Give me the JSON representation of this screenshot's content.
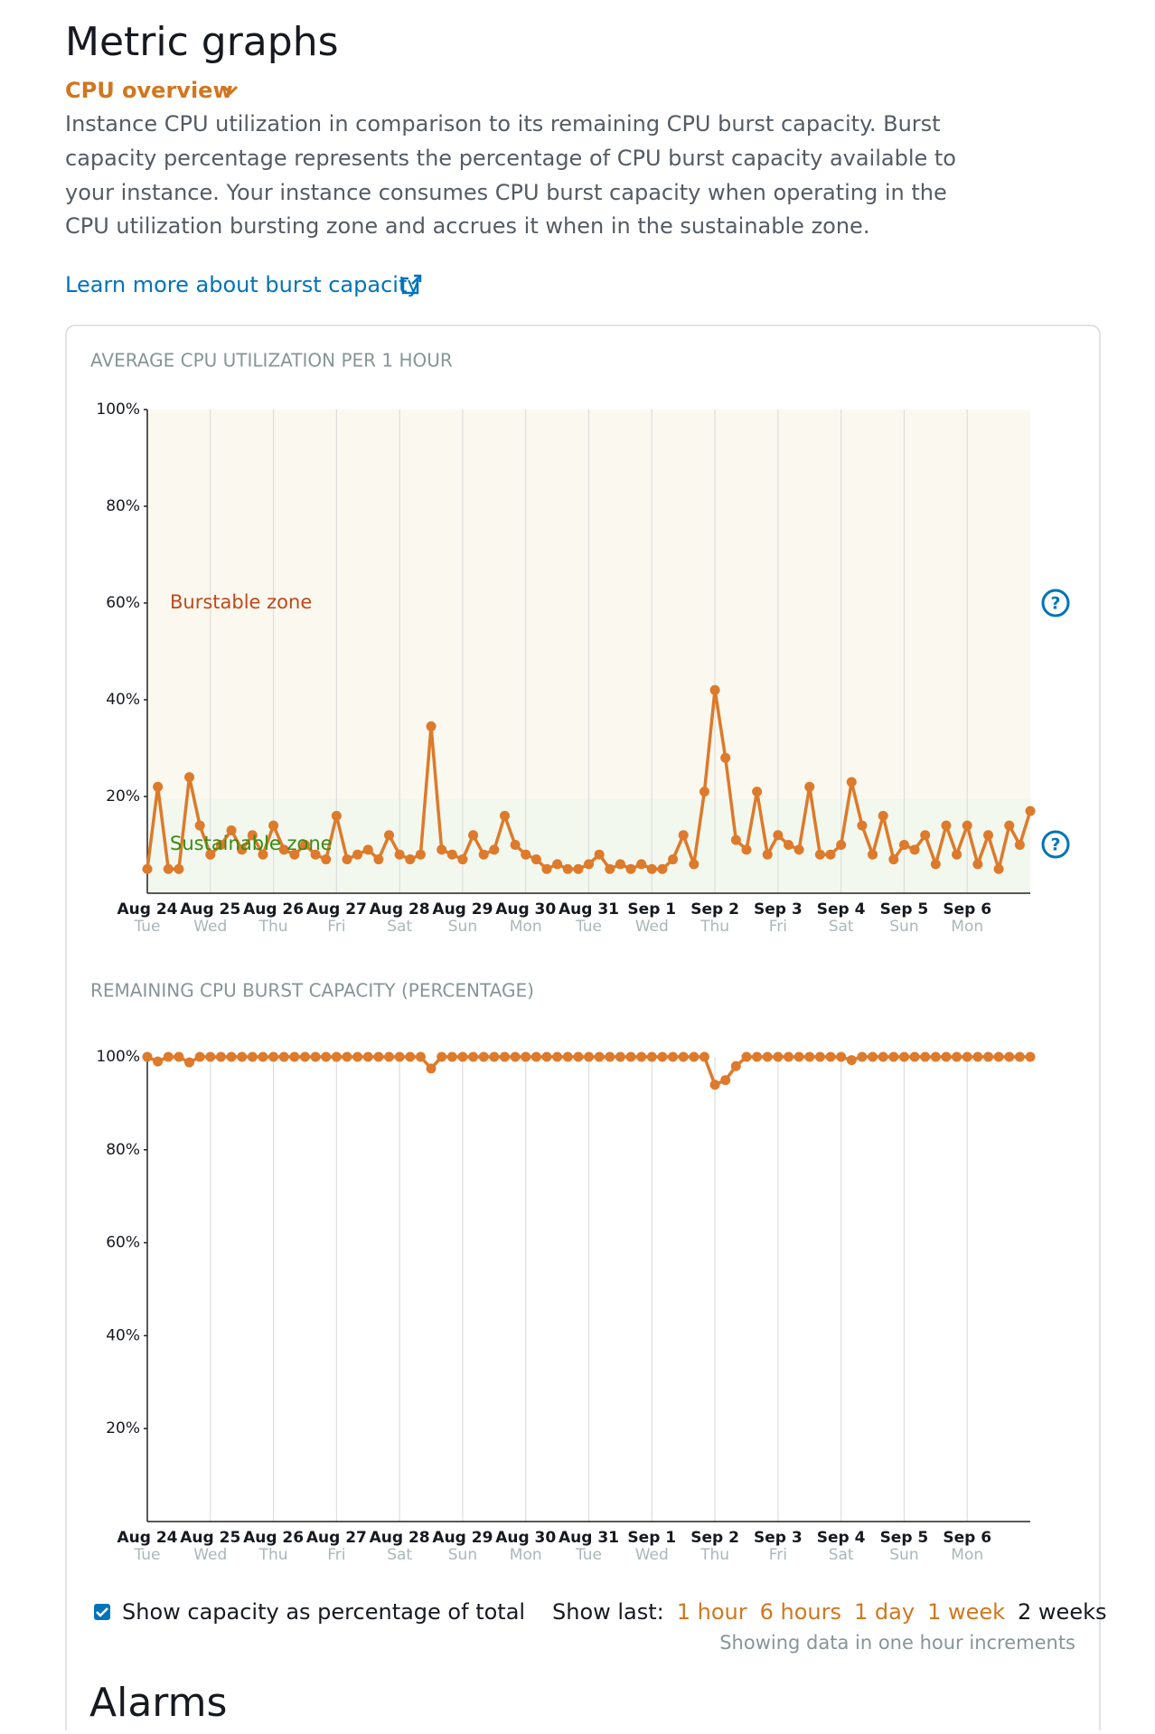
{
  "header": {
    "title": "Metric graphs",
    "section": "CPU overview"
  },
  "description": [
    "Instance CPU utilization in comparison to its remaining CPU burst capacity. Burst",
    "capacity percentage represents the percentage of CPU burst capacity available to",
    "your instance. Your instance consumes CPU burst capacity when operating in the",
    "CPU utilization bursting zone and accrues it when in the sustainable zone."
  ],
  "link": "Learn more about burst capacity",
  "charts": [
    {
      "type": "line",
      "title": "AVERAGE CPU UTILIZATION PER 1 HOUR",
      "color": "#dd7a2b",
      "zones": [
        "Burstable zone",
        "Sustainable zone"
      ],
      "xlim": [
        0,
        336
      ],
      "ylim": [
        0,
        100
      ],
      "yticks": [
        {
          "value": 20,
          "label": "20%"
        },
        {
          "value": 40,
          "label": "40%"
        },
        {
          "value": 60,
          "label": "60%"
        },
        {
          "value": 80,
          "label": "80%"
        },
        {
          "value": 100,
          "label": "100%"
        }
      ],
      "xticks": [
        {
          "value": 0,
          "label": "Aug 24"
        },
        {
          "value": 24,
          "label": "Aug 25"
        },
        {
          "value": 48,
          "label": "Aug 26"
        },
        {
          "value": 72,
          "label": "Aug 27"
        },
        {
          "value": 96,
          "label": "Aug 28"
        },
        {
          "value": 120,
          "label": "Aug 29"
        },
        {
          "value": 144,
          "label": "Aug 30"
        },
        {
          "value": 168,
          "label": "Aug 31"
        },
        {
          "value": 192,
          "label": "Sep 1"
        },
        {
          "value": 216,
          "label": "Sep 2"
        },
        {
          "value": 240,
          "label": "Sep 3"
        },
        {
          "value": 264,
          "label": "Sep 4"
        },
        {
          "value": 288,
          "label": "Sep 5"
        },
        {
          "value": 312,
          "label": "Sep 6"
        }
      ],
      "xtick_days": [
        "Tue",
        "Wed",
        "Thu",
        "Fri",
        "Sat",
        "Sun",
        "Mon",
        "Tue",
        "Wed",
        "Thu",
        "Fri",
        "Sat",
        "Sun",
        "Mon"
      ],
      "x": [
        0,
        4,
        8,
        12,
        16,
        20,
        24,
        28,
        32,
        36,
        40,
        44,
        48,
        52,
        56,
        60,
        64,
        68,
        72,
        76,
        80,
        84,
        88,
        92,
        96,
        100,
        104,
        108,
        112,
        116,
        120,
        124,
        128,
        132,
        136,
        140,
        144,
        148,
        152,
        156,
        160,
        164,
        168,
        172,
        176,
        180,
        184,
        188,
        192,
        196,
        200,
        204,
        208,
        212,
        216,
        220,
        224,
        228,
        232,
        236,
        240,
        244,
        248,
        252,
        256,
        260,
        264,
        268,
        272,
        276,
        280,
        284,
        288,
        292,
        296,
        300,
        304,
        308,
        312,
        316,
        320,
        324,
        328,
        332,
        336
      ],
      "values": [
        5,
        22,
        5,
        5,
        24,
        14,
        8,
        10,
        13,
        9,
        12,
        8,
        14,
        9,
        8,
        10,
        8,
        7,
        16,
        7,
        8,
        9,
        7,
        12,
        8,
        7,
        8,
        34.5,
        9,
        8,
        7,
        12,
        8,
        9,
        16,
        10,
        8,
        7,
        5,
        6,
        5,
        5,
        6,
        8,
        5,
        6,
        5,
        6,
        5,
        5,
        7,
        12,
        6,
        21,
        42,
        28,
        11,
        9,
        21,
        8,
        12,
        10,
        9,
        22,
        8,
        8,
        10,
        23,
        14,
        8,
        16,
        7,
        10,
        9,
        12,
        6,
        14,
        8,
        14,
        6,
        12,
        5,
        14,
        10,
        17
      ]
    },
    {
      "type": "line",
      "title": "REMAINING CPU BURST CAPACITY (PERCENTAGE)",
      "color": "#dd7a2b",
      "xlim": [
        0,
        336
      ],
      "ylim": [
        0,
        100
      ],
      "yticks": [
        {
          "value": 20,
          "label": "20%"
        },
        {
          "value": 40,
          "label": "40%"
        },
        {
          "value": 60,
          "label": "60%"
        },
        {
          "value": 80,
          "label": "80%"
        },
        {
          "value": 100,
          "label": "100%"
        }
      ],
      "xticks": [
        {
          "value": 0,
          "label": "Aug 24"
        },
        {
          "value": 24,
          "label": "Aug 25"
        },
        {
          "value": 48,
          "label": "Aug 26"
        },
        {
          "value": 72,
          "label": "Aug 27"
        },
        {
          "value": 96,
          "label": "Aug 28"
        },
        {
          "value": 120,
          "label": "Aug 29"
        },
        {
          "value": 144,
          "label": "Aug 30"
        },
        {
          "value": 168,
          "label": "Aug 31"
        },
        {
          "value": 192,
          "label": "Sep 1"
        },
        {
          "value": 216,
          "label": "Sep 2"
        },
        {
          "value": 240,
          "label": "Sep 3"
        },
        {
          "value": 264,
          "label": "Sep 4"
        },
        {
          "value": 288,
          "label": "Sep 5"
        },
        {
          "value": 312,
          "label": "Sep 6"
        }
      ],
      "xtick_days": [
        "Tue",
        "Wed",
        "Thu",
        "Fri",
        "Sat",
        "Sun",
        "Mon",
        "Tue",
        "Wed",
        "Thu",
        "Fri",
        "Sat",
        "Sun",
        "Mon"
      ],
      "x": [
        0,
        4,
        8,
        12,
        16,
        20,
        24,
        28,
        32,
        36,
        40,
        44,
        48,
        52,
        56,
        60,
        64,
        68,
        72,
        76,
        80,
        84,
        88,
        92,
        96,
        100,
        104,
        108,
        112,
        116,
        120,
        124,
        128,
        132,
        136,
        140,
        144,
        148,
        152,
        156,
        160,
        164,
        168,
        172,
        176,
        180,
        184,
        188,
        192,
        196,
        200,
        204,
        208,
        212,
        216,
        220,
        224,
        228,
        232,
        236,
        240,
        244,
        248,
        252,
        256,
        260,
        264,
        268,
        272,
        276,
        280,
        284,
        288,
        292,
        296,
        300,
        304,
        308,
        312,
        316,
        320,
        324,
        328,
        332,
        336
      ],
      "values": [
        100,
        99,
        100,
        100,
        98.8,
        100,
        100,
        100,
        100,
        100,
        100,
        100,
        100,
        100,
        100,
        100,
        100,
        100,
        100,
        100,
        100,
        100,
        100,
        100,
        100,
        100,
        100,
        97.5,
        100,
        100,
        100,
        100,
        100,
        100,
        100,
        100,
        100,
        100,
        100,
        100,
        100,
        100,
        100,
        100,
        100,
        100,
        100,
        100,
        100,
        100,
        100,
        100,
        100,
        100,
        94,
        95,
        98,
        100,
        100,
        100,
        100,
        100,
        100,
        100,
        100,
        100,
        100,
        99.3,
        100,
        100,
        100,
        100,
        100,
        100,
        100,
        100,
        100,
        100,
        100,
        100,
        100,
        100,
        100,
        100,
        100
      ]
    }
  ],
  "controls": {
    "checkbox": "Show capacity as percentage of total",
    "show_last": "Show last:",
    "options": [
      "1 hour",
      "6 hours",
      "1 day",
      "1 week"
    ],
    "selected": "2 weeks",
    "note": "Showing data in one hour increments"
  },
  "alarms": "Alarms"
}
